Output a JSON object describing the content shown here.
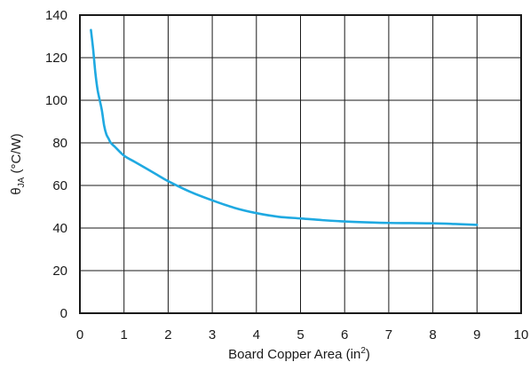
{
  "chart_data": {
    "type": "line",
    "xlabel": "Board Copper Area (in",
    "xlabel_sup": "2",
    "xlabel_end": ")",
    "ylabel_symbol": "θ",
    "ylabel_sub": "JA",
    "ylabel_unit": " (°C/W)",
    "xlim": [
      0,
      10
    ],
    "ylim": [
      0,
      140
    ],
    "x_ticks": [
      0,
      1,
      2,
      3,
      4,
      5,
      6,
      7,
      8,
      9,
      10
    ],
    "y_ticks": [
      0,
      20,
      40,
      60,
      80,
      100,
      120,
      140
    ],
    "grid": true,
    "line_color": "#1fa9e1",
    "series": [
      {
        "x": [
          0.25,
          0.3,
          0.35,
          0.4,
          0.45,
          0.5,
          0.55,
          0.6,
          0.65,
          0.7,
          0.8,
          1.0,
          1.25,
          1.5,
          1.75,
          2.0,
          2.5,
          3.0,
          3.5,
          4.0,
          4.5,
          5.0,
          5.5,
          6.0,
          6.5,
          7.0,
          7.5,
          8.0,
          8.5,
          9.0
        ],
        "y": [
          133,
          124,
          113,
          105,
          100,
          95,
          88,
          84,
          82,
          80,
          78,
          74,
          71,
          68,
          65,
          62,
          57,
          53,
          49.5,
          47,
          45.3,
          44.5,
          43.7,
          43.1,
          42.7,
          42.4,
          42.3,
          42.2,
          41.9,
          41.5
        ]
      }
    ]
  }
}
